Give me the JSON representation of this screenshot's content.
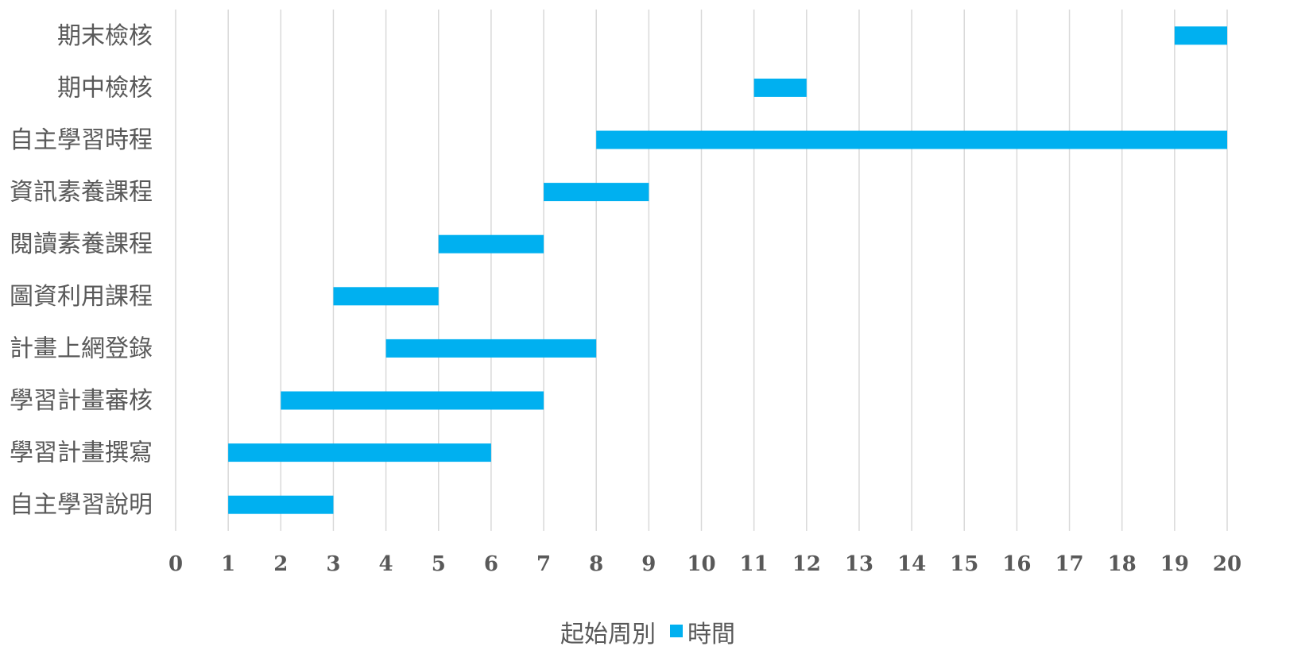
{
  "chart_data": {
    "type": "bar",
    "orientation": "horizontal",
    "stacked": true,
    "categories": [
      "自主學習說明",
      "學習計畫撰寫",
      "學習計畫審核",
      "計畫上網登錄",
      "圖資利用課程",
      "閱讀素養課程",
      "資訊素養課程",
      "自主學習時程",
      "期中檢核",
      "期末檢核"
    ],
    "series": [
      {
        "name": "起始周別",
        "values": [
          1,
          1,
          2,
          4,
          3,
          5,
          7,
          8,
          11,
          19
        ],
        "color": "none",
        "visible": false
      },
      {
        "name": "時間",
        "values": [
          2,
          5,
          5,
          4,
          2,
          2,
          2,
          12,
          1,
          1
        ],
        "color": "#00b0f0",
        "visible": true
      }
    ],
    "x_ticks": [
      0,
      1,
      2,
      3,
      4,
      5,
      6,
      7,
      8,
      9,
      10,
      11,
      12,
      13,
      14,
      15,
      16,
      17,
      18,
      19,
      20
    ],
    "xlim": [
      0,
      20
    ],
    "grid": "vertical",
    "legend_position": "bottom",
    "title": "",
    "xlabel": "",
    "ylabel": ""
  }
}
